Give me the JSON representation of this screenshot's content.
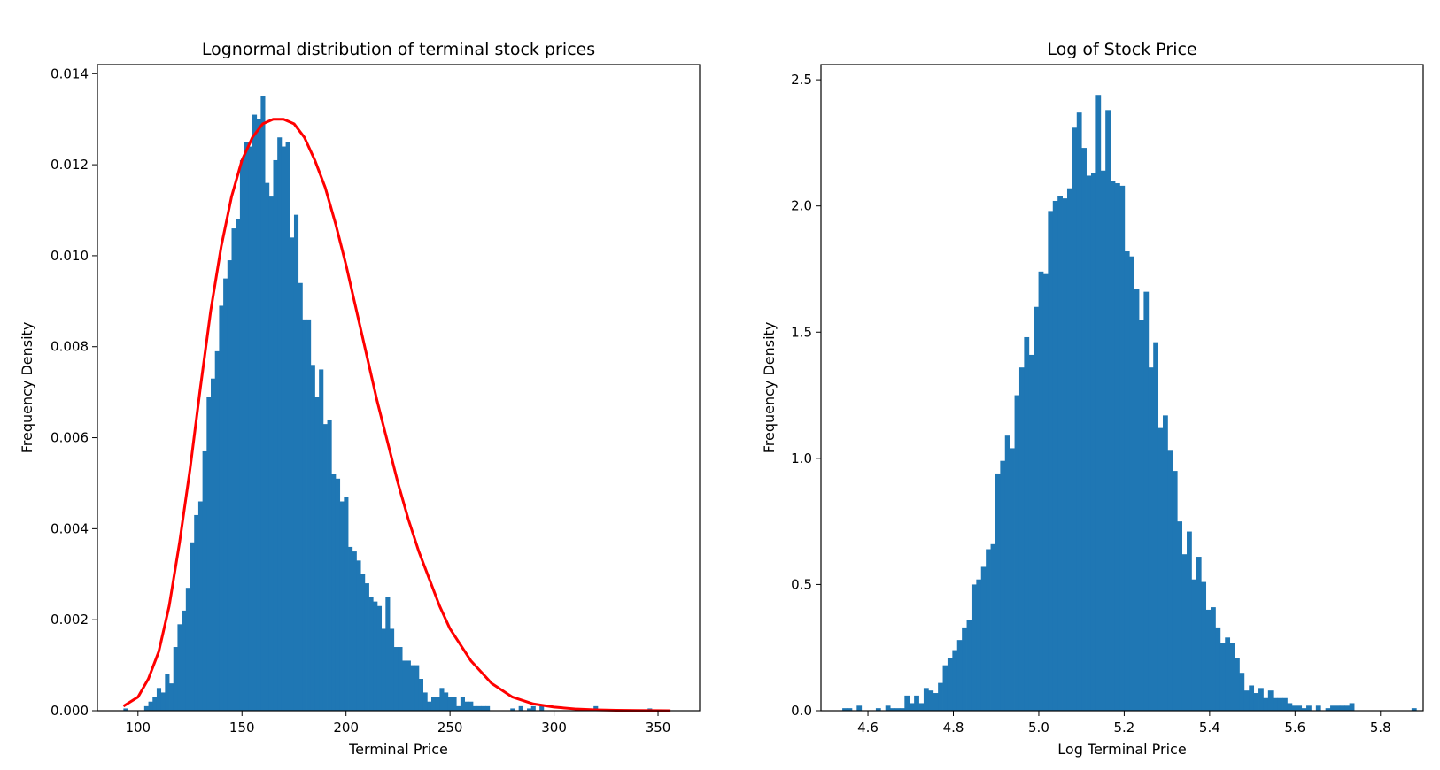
{
  "chart_data": [
    {
      "type": "bar",
      "title": "Lognormal distribution of terminal stock prices",
      "xlabel": "Terminal Price",
      "ylabel": "Frequency Density",
      "xlim": [
        80.5,
        370
      ],
      "ylim": [
        0,
        0.0142
      ],
      "xticks": [
        100,
        150,
        200,
        250,
        300,
        350
      ],
      "xtick_labels": [
        "100",
        "150",
        "200",
        "250",
        "300",
        "350"
      ],
      "yticks": [
        0,
        0.002,
        0.004,
        0.006,
        0.008,
        0.01,
        0.012,
        0.014
      ],
      "ytick_labels": [
        "0.000",
        "0.002",
        "0.004",
        "0.006",
        "0.008",
        "0.010",
        "0.012",
        "0.014"
      ],
      "grid": false,
      "bar_color": "#1f77b4",
      "bins": {
        "start": 93,
        "width": 2,
        "values": [
          5e-05,
          0,
          0,
          0,
          0,
          0.0001,
          0.0002,
          0.0003,
          0.0005,
          0.0004,
          0.0008,
          0.0006,
          0.0014,
          0.0019,
          0.0022,
          0.0027,
          0.0037,
          0.0043,
          0.0046,
          0.0057,
          0.0069,
          0.0073,
          0.0079,
          0.0089,
          0.0095,
          0.0099,
          0.0106,
          0.0108,
          0.0121,
          0.0125,
          0.0124,
          0.0131,
          0.013,
          0.0135,
          0.0116,
          0.0113,
          0.0121,
          0.0126,
          0.0124,
          0.0125,
          0.0104,
          0.0109,
          0.0094,
          0.0086,
          0.0086,
          0.0076,
          0.0069,
          0.0075,
          0.0063,
          0.0064,
          0.0052,
          0.0051,
          0.0046,
          0.0047,
          0.0036,
          0.0035,
          0.0033,
          0.003,
          0.0028,
          0.0025,
          0.0024,
          0.0023,
          0.0018,
          0.0025,
          0.0018,
          0.0014,
          0.0014,
          0.0011,
          0.0011,
          0.001,
          0.001,
          0.0007,
          0.0004,
          0.0002,
          0.0003,
          0.0003,
          0.0005,
          0.0004,
          0.0003,
          0.0003,
          0.0001,
          0.0003,
          0.0002,
          0.0002,
          0.0001,
          0.0001,
          0.0001,
          0.0001,
          0,
          0,
          0,
          0,
          0,
          5e-05,
          0,
          0.0001,
          0,
          5e-05,
          0.0001,
          0,
          0.0001,
          0,
          0,
          0,
          0,
          0,
          0,
          0,
          0,
          0,
          0,
          0,
          0,
          0.0001,
          0,
          0,
          0,
          0,
          0,
          0,
          0,
          0,
          0,
          0,
          0,
          0,
          5e-05
        ]
      },
      "curve": {
        "type": "line",
        "color": "#ff0000",
        "x": [
          93,
          100,
          105,
          110,
          115,
          120,
          125,
          130,
          135,
          140,
          145,
          150,
          155,
          160,
          165,
          170,
          175,
          180,
          185,
          190,
          195,
          200,
          205,
          210,
          215,
          220,
          225,
          230,
          235,
          240,
          245,
          250,
          260,
          270,
          280,
          290,
          300,
          310,
          320,
          330,
          340,
          350,
          356
        ],
        "y": [
          0.0001,
          0.0003,
          0.0007,
          0.0013,
          0.0023,
          0.0037,
          0.0053,
          0.0071,
          0.0088,
          0.0102,
          0.0113,
          0.0121,
          0.0126,
          0.0129,
          0.013,
          0.013,
          0.0129,
          0.0126,
          0.0121,
          0.0115,
          0.0107,
          0.0098,
          0.0088,
          0.0078,
          0.0068,
          0.0059,
          0.005,
          0.0042,
          0.0035,
          0.0029,
          0.0023,
          0.0018,
          0.0011,
          0.0006,
          0.0003,
          0.00015,
          8e-05,
          4e-05,
          2e-05,
          1e-05,
          5e-06,
          2e-06,
          1e-06
        ]
      }
    },
    {
      "type": "bar",
      "title": "Log of Stock Price",
      "xlabel": "Log Terminal Price",
      "ylabel": "Frequency Density",
      "xlim": [
        4.49,
        5.9
      ],
      "ylim": [
        0,
        2.56
      ],
      "xticks": [
        4.6,
        4.8,
        5.0,
        5.2,
        5.4,
        5.6,
        5.8
      ],
      "xtick_labels": [
        "4.6",
        "4.8",
        "5.0",
        "5.2",
        "5.4",
        "5.6",
        "5.8"
      ],
      "yticks": [
        0,
        0.5,
        1.0,
        1.5,
        2.0,
        2.5
      ],
      "ytick_labels": [
        "0.0",
        "0.5",
        "1.0",
        "1.5",
        "2.0",
        "2.5"
      ],
      "grid": false,
      "bar_color": "#1f77b4",
      "bins": {
        "start": 4.54,
        "width": 0.0112,
        "values": [
          0.01,
          0.01,
          0,
          0.02,
          0,
          0,
          0,
          0.01,
          0,
          0.02,
          0.01,
          0.01,
          0.01,
          0.06,
          0.03,
          0.06,
          0.03,
          0.09,
          0.08,
          0.07,
          0.11,
          0.18,
          0.21,
          0.24,
          0.28,
          0.33,
          0.36,
          0.5,
          0.52,
          0.57,
          0.64,
          0.66,
          0.94,
          0.99,
          1.09,
          1.04,
          1.25,
          1.36,
          1.48,
          1.41,
          1.6,
          1.74,
          1.73,
          1.98,
          2.02,
          2.04,
          2.03,
          2.07,
          2.31,
          2.37,
          2.23,
          2.12,
          2.13,
          2.44,
          2.14,
          2.38,
          2.1,
          2.09,
          2.08,
          1.82,
          1.8,
          1.67,
          1.55,
          1.66,
          1.36,
          1.46,
          1.12,
          1.17,
          1.03,
          0.95,
          0.75,
          0.62,
          0.71,
          0.52,
          0.61,
          0.51,
          0.4,
          0.41,
          0.33,
          0.27,
          0.29,
          0.27,
          0.21,
          0.15,
          0.08,
          0.1,
          0.07,
          0.09,
          0.05,
          0.08,
          0.05,
          0.05,
          0.05,
          0.03,
          0.02,
          0.02,
          0.01,
          0.02,
          0,
          0.02,
          0,
          0.01,
          0.02,
          0.02,
          0.02,
          0.02,
          0.03,
          0,
          0,
          0,
          0,
          0,
          0,
          0,
          0,
          0,
          0,
          0,
          0,
          0.01
        ]
      }
    }
  ]
}
